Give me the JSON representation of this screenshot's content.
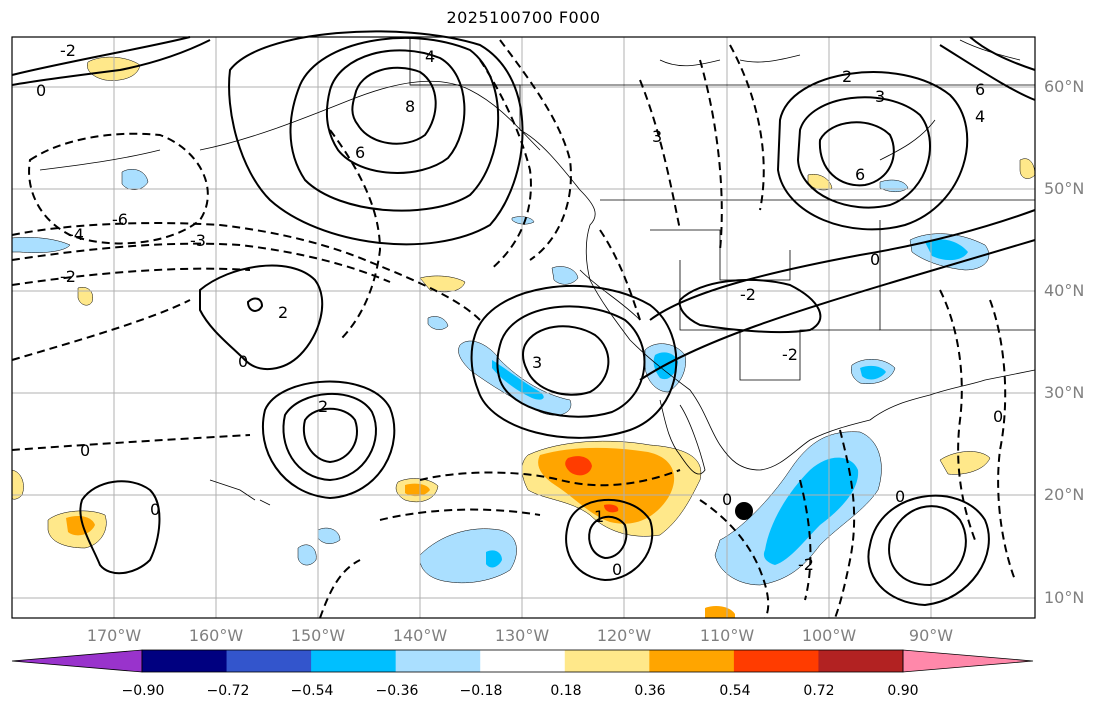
{
  "title": "2025100700 F000",
  "longitude_labels": [
    "170°W",
    "160°W",
    "150°W",
    "140°W",
    "130°W",
    "120°W",
    "110°W",
    "100°W",
    "90°W"
  ],
  "latitude_labels": [
    "60°N",
    "50°N",
    "40°N",
    "30°N",
    "20°N",
    "10°N"
  ],
  "colorbar": {
    "tick_labels": [
      "−0.90",
      "−0.72",
      "−0.54",
      "−0.36",
      "−0.18",
      "0.18",
      "0.36",
      "0.54",
      "0.72",
      "0.90"
    ],
    "colors": [
      "#9933cc",
      "#000080",
      "#3355cc",
      "#00bfff",
      "#aadfff",
      "#ffffff",
      "#ffe88a",
      "#ffa500",
      "#ff3c00",
      "#b22222",
      "#ff88aa"
    ]
  },
  "contour_labels": [
    "6",
    "4",
    "2",
    "0",
    "-2",
    "-3",
    "-4",
    "-6",
    "8",
    "3",
    "-1",
    "1"
  ],
  "map_colors": {
    "positive_light": "#ffe88a",
    "positive_mid": "#ffa500",
    "positive_strong": "#ff3c00",
    "negative_light": "#aadfff",
    "negative_mid": "#00bfff",
    "contour": "#000000",
    "grid": "#b0b0b0"
  }
}
